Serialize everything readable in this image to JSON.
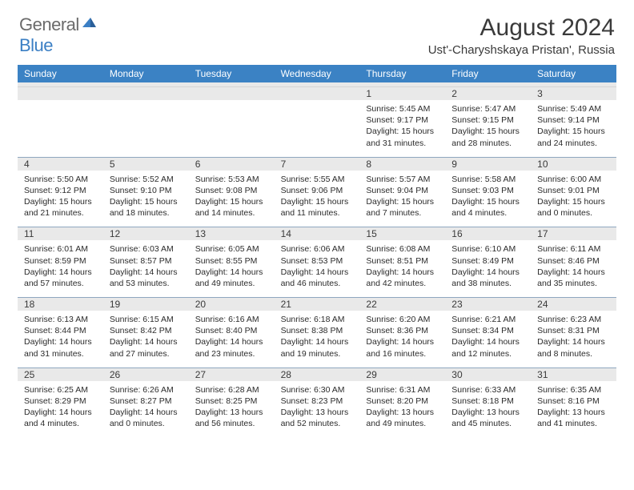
{
  "header": {
    "logo_general": "General",
    "logo_blue": "Blue",
    "month_title": "August 2024",
    "location": "Ust'-Charyshskaya Pristan', Russia"
  },
  "colors": {
    "header_bg": "#3b82c4",
    "row_band": "#e9e9e9",
    "row_border": "#8fa7bf",
    "text": "#2b2b2b",
    "logo_gray": "#6b6b6b",
    "logo_blue": "#3b7fc4"
  },
  "day_names": [
    "Sunday",
    "Monday",
    "Tuesday",
    "Wednesday",
    "Thursday",
    "Friday",
    "Saturday"
  ],
  "weeks": [
    [
      {
        "num": "",
        "lines": []
      },
      {
        "num": "",
        "lines": []
      },
      {
        "num": "",
        "lines": []
      },
      {
        "num": "",
        "lines": []
      },
      {
        "num": "1",
        "lines": [
          "Sunrise: 5:45 AM",
          "Sunset: 9:17 PM",
          "Daylight: 15 hours",
          "and 31 minutes."
        ]
      },
      {
        "num": "2",
        "lines": [
          "Sunrise: 5:47 AM",
          "Sunset: 9:15 PM",
          "Daylight: 15 hours",
          "and 28 minutes."
        ]
      },
      {
        "num": "3",
        "lines": [
          "Sunrise: 5:49 AM",
          "Sunset: 9:14 PM",
          "Daylight: 15 hours",
          "and 24 minutes."
        ]
      }
    ],
    [
      {
        "num": "4",
        "lines": [
          "Sunrise: 5:50 AM",
          "Sunset: 9:12 PM",
          "Daylight: 15 hours",
          "and 21 minutes."
        ]
      },
      {
        "num": "5",
        "lines": [
          "Sunrise: 5:52 AM",
          "Sunset: 9:10 PM",
          "Daylight: 15 hours",
          "and 18 minutes."
        ]
      },
      {
        "num": "6",
        "lines": [
          "Sunrise: 5:53 AM",
          "Sunset: 9:08 PM",
          "Daylight: 15 hours",
          "and 14 minutes."
        ]
      },
      {
        "num": "7",
        "lines": [
          "Sunrise: 5:55 AM",
          "Sunset: 9:06 PM",
          "Daylight: 15 hours",
          "and 11 minutes."
        ]
      },
      {
        "num": "8",
        "lines": [
          "Sunrise: 5:57 AM",
          "Sunset: 9:04 PM",
          "Daylight: 15 hours",
          "and 7 minutes."
        ]
      },
      {
        "num": "9",
        "lines": [
          "Sunrise: 5:58 AM",
          "Sunset: 9:03 PM",
          "Daylight: 15 hours",
          "and 4 minutes."
        ]
      },
      {
        "num": "10",
        "lines": [
          "Sunrise: 6:00 AM",
          "Sunset: 9:01 PM",
          "Daylight: 15 hours",
          "and 0 minutes."
        ]
      }
    ],
    [
      {
        "num": "11",
        "lines": [
          "Sunrise: 6:01 AM",
          "Sunset: 8:59 PM",
          "Daylight: 14 hours",
          "and 57 minutes."
        ]
      },
      {
        "num": "12",
        "lines": [
          "Sunrise: 6:03 AM",
          "Sunset: 8:57 PM",
          "Daylight: 14 hours",
          "and 53 minutes."
        ]
      },
      {
        "num": "13",
        "lines": [
          "Sunrise: 6:05 AM",
          "Sunset: 8:55 PM",
          "Daylight: 14 hours",
          "and 49 minutes."
        ]
      },
      {
        "num": "14",
        "lines": [
          "Sunrise: 6:06 AM",
          "Sunset: 8:53 PM",
          "Daylight: 14 hours",
          "and 46 minutes."
        ]
      },
      {
        "num": "15",
        "lines": [
          "Sunrise: 6:08 AM",
          "Sunset: 8:51 PM",
          "Daylight: 14 hours",
          "and 42 minutes."
        ]
      },
      {
        "num": "16",
        "lines": [
          "Sunrise: 6:10 AM",
          "Sunset: 8:49 PM",
          "Daylight: 14 hours",
          "and 38 minutes."
        ]
      },
      {
        "num": "17",
        "lines": [
          "Sunrise: 6:11 AM",
          "Sunset: 8:46 PM",
          "Daylight: 14 hours",
          "and 35 minutes."
        ]
      }
    ],
    [
      {
        "num": "18",
        "lines": [
          "Sunrise: 6:13 AM",
          "Sunset: 8:44 PM",
          "Daylight: 14 hours",
          "and 31 minutes."
        ]
      },
      {
        "num": "19",
        "lines": [
          "Sunrise: 6:15 AM",
          "Sunset: 8:42 PM",
          "Daylight: 14 hours",
          "and 27 minutes."
        ]
      },
      {
        "num": "20",
        "lines": [
          "Sunrise: 6:16 AM",
          "Sunset: 8:40 PM",
          "Daylight: 14 hours",
          "and 23 minutes."
        ]
      },
      {
        "num": "21",
        "lines": [
          "Sunrise: 6:18 AM",
          "Sunset: 8:38 PM",
          "Daylight: 14 hours",
          "and 19 minutes."
        ]
      },
      {
        "num": "22",
        "lines": [
          "Sunrise: 6:20 AM",
          "Sunset: 8:36 PM",
          "Daylight: 14 hours",
          "and 16 minutes."
        ]
      },
      {
        "num": "23",
        "lines": [
          "Sunrise: 6:21 AM",
          "Sunset: 8:34 PM",
          "Daylight: 14 hours",
          "and 12 minutes."
        ]
      },
      {
        "num": "24",
        "lines": [
          "Sunrise: 6:23 AM",
          "Sunset: 8:31 PM",
          "Daylight: 14 hours",
          "and 8 minutes."
        ]
      }
    ],
    [
      {
        "num": "25",
        "lines": [
          "Sunrise: 6:25 AM",
          "Sunset: 8:29 PM",
          "Daylight: 14 hours",
          "and 4 minutes."
        ]
      },
      {
        "num": "26",
        "lines": [
          "Sunrise: 6:26 AM",
          "Sunset: 8:27 PM",
          "Daylight: 14 hours",
          "and 0 minutes."
        ]
      },
      {
        "num": "27",
        "lines": [
          "Sunrise: 6:28 AM",
          "Sunset: 8:25 PM",
          "Daylight: 13 hours",
          "and 56 minutes."
        ]
      },
      {
        "num": "28",
        "lines": [
          "Sunrise: 6:30 AM",
          "Sunset: 8:23 PM",
          "Daylight: 13 hours",
          "and 52 minutes."
        ]
      },
      {
        "num": "29",
        "lines": [
          "Sunrise: 6:31 AM",
          "Sunset: 8:20 PM",
          "Daylight: 13 hours",
          "and 49 minutes."
        ]
      },
      {
        "num": "30",
        "lines": [
          "Sunrise: 6:33 AM",
          "Sunset: 8:18 PM",
          "Daylight: 13 hours",
          "and 45 minutes."
        ]
      },
      {
        "num": "31",
        "lines": [
          "Sunrise: 6:35 AM",
          "Sunset: 8:16 PM",
          "Daylight: 13 hours",
          "and 41 minutes."
        ]
      }
    ]
  ]
}
